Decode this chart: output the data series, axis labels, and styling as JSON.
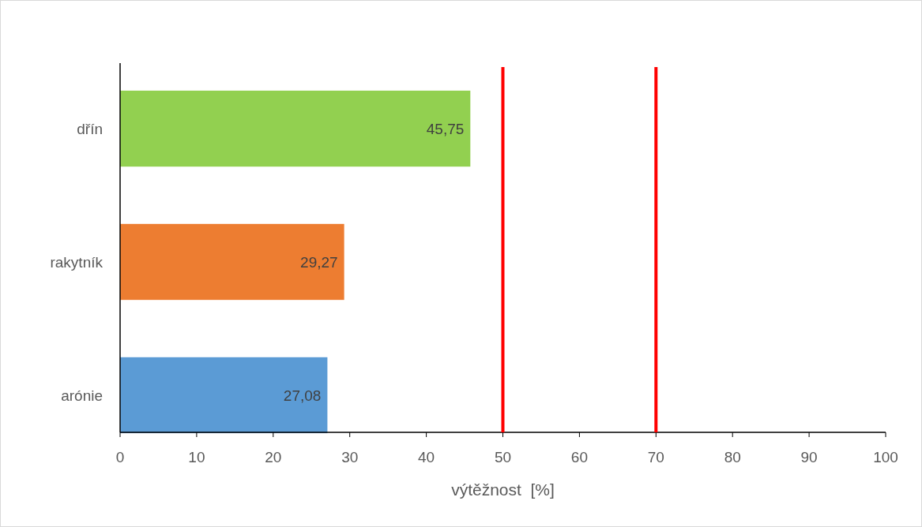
{
  "chart_data": {
    "type": "bar",
    "orientation": "horizontal",
    "xlabel": "výtěžnost  [%]",
    "categories": [
      "dřín",
      "rakytník",
      "arónie"
    ],
    "values": [
      45.75,
      29.27,
      27.08
    ],
    "colors": [
      "#92d050",
      "#ed7d31",
      "#5b9bd5"
    ],
    "value_labels": [
      "45,75",
      "29,27",
      "27,08"
    ],
    "xlim": [
      0,
      100
    ],
    "xticks": [
      0,
      10,
      20,
      30,
      40,
      50,
      60,
      70,
      80,
      90,
      100
    ],
    "ref_lines": [
      {
        "axis": "x",
        "value": 50,
        "color": "#ff0000"
      },
      {
        "axis": "x",
        "value": 70,
        "color": "#ff0000"
      }
    ]
  }
}
